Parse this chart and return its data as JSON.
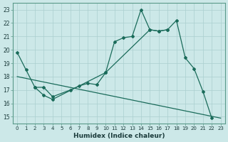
{
  "xlabel": "Humidex (Indice chaleur)",
  "background_color": "#cce8e8",
  "grid_color": "#aacfcf",
  "line_color": "#1a6b5a",
  "xlim": [
    -0.5,
    23.5
  ],
  "ylim": [
    14.5,
    23.5
  ],
  "xticks": [
    0,
    1,
    2,
    3,
    4,
    5,
    6,
    7,
    8,
    9,
    10,
    11,
    12,
    13,
    14,
    15,
    16,
    17,
    18,
    19,
    20,
    21,
    22,
    23
  ],
  "yticks": [
    15,
    16,
    17,
    18,
    19,
    20,
    21,
    22,
    23
  ],
  "line1_x": [
    0,
    1,
    2,
    3,
    4,
    10,
    11,
    12,
    13,
    14,
    15,
    16,
    17,
    18,
    19,
    20,
    21,
    22
  ],
  "line1_y": [
    19.8,
    18.5,
    17.2,
    16.6,
    16.3,
    18.3,
    20.6,
    20.9,
    21.0,
    23.0,
    21.5,
    21.4,
    21.5,
    22.2,
    19.4,
    18.6,
    16.9,
    14.9
  ],
  "line2_x": [
    2,
    3,
    4,
    6,
    7,
    8,
    9,
    10,
    15,
    16,
    17
  ],
  "line2_y": [
    17.2,
    17.2,
    16.5,
    17.0,
    17.3,
    17.5,
    17.4,
    18.3,
    21.5,
    21.4,
    21.5
  ],
  "line3_x": [
    0,
    23
  ],
  "line3_y": [
    18.0,
    14.9
  ],
  "figsize": [
    3.2,
    2.0
  ],
  "dpi": 100
}
